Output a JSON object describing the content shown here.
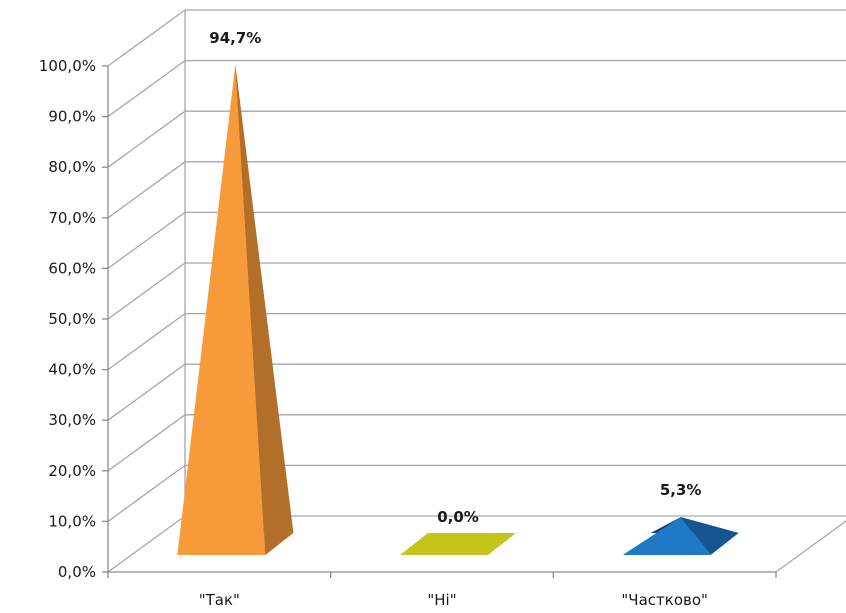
{
  "chart_data": {
    "type": "bar",
    "style": "3d-pyramid",
    "categories": [
      "\"Так\"",
      "\"Ні\"",
      "\"Частково\""
    ],
    "values": [
      94.7,
      0.0,
      5.3
    ],
    "data_labels": [
      "94,7%",
      "0,0%",
      "5,3%"
    ],
    "colors": [
      "#f79a3a",
      "#c5c41a",
      "#1f78c8"
    ],
    "ylim": [
      0,
      100
    ],
    "yticks": [
      "0,0%",
      "10,0%",
      "20,0%",
      "30,0%",
      "40,0%",
      "50,0%",
      "60,0%",
      "70,0%",
      "80,0%",
      "90,0%",
      "100,0%"
    ],
    "grid": true,
    "title": "",
    "xlabel": "",
    "ylabel": ""
  }
}
